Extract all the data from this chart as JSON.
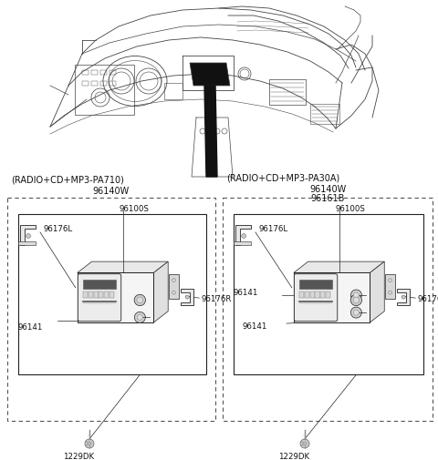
{
  "bg_color": "#ffffff",
  "line_color": "#222222",
  "dashed_color": "#555555",
  "text_color": "#111111",
  "left_box_label": "(RADIO+CD+MP3-PA710)",
  "left_part_number": "96140W",
  "right_box_label": "(RADIO+CD+MP3-PA30A)",
  "right_part_numbers": [
    "96140W",
    "96161B"
  ],
  "font_size_label": 7.0,
  "font_size_part": 6.2,
  "font_size_part_sm": 5.8
}
